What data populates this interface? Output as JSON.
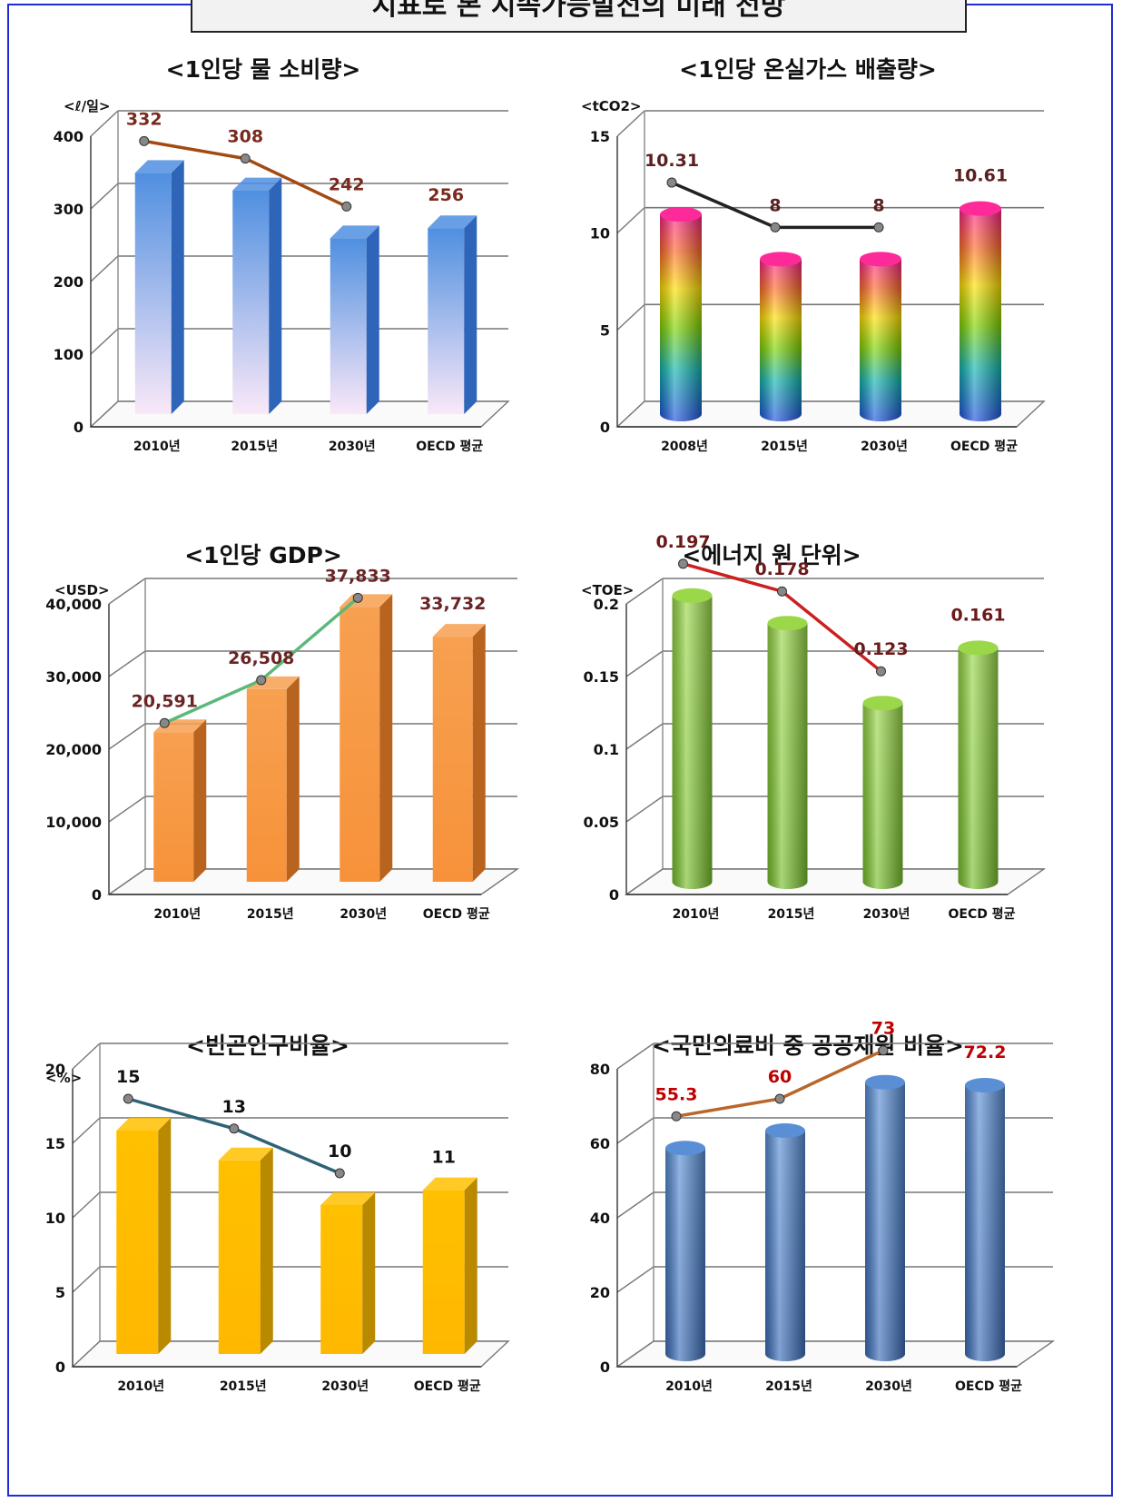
{
  "page": {
    "title": "지표로 본 지속가능발전의 미래 전망"
  },
  "chart_data": [
    {
      "id": "water",
      "type": "bar",
      "title": "<1인당 물 소비량>",
      "unit": "<ℓ/일>",
      "categories": [
        "2010년",
        "2015년",
        "2030년",
        "OECD 평균"
      ],
      "values": [
        332,
        308,
        242,
        256
      ],
      "data_labels": [
        "332",
        "308",
        "242",
        "256"
      ],
      "trend_line_points": 3,
      "ylim": [
        0,
        400
      ],
      "yticks": [
        "0",
        "100",
        "200",
        "300",
        "400"
      ],
      "bar_shape": "box",
      "colors": {
        "bar_top": "#4f8fe0",
        "bar_bottom": "#fae8f8",
        "bar_side": "#2f65b8",
        "line": "#a34a13",
        "label": "#7a2a1e"
      }
    },
    {
      "id": "ghg",
      "type": "bar",
      "title": "<1인당 온실가스 배출량>",
      "unit": "<tCO2>",
      "categories": [
        "2008년",
        "2015년",
        "2030년",
        "OECD 평균"
      ],
      "values": [
        10.31,
        8,
        8,
        10.61
      ],
      "data_labels": [
        "10.31",
        "8",
        "8",
        "10.61"
      ],
      "trend_line_points": 3,
      "ylim": [
        0,
        15
      ],
      "yticks": [
        "0",
        "5",
        "10",
        "15"
      ],
      "bar_shape": "cylinder",
      "colors": {
        "line": "#222222",
        "label": "#5a2020"
      }
    },
    {
      "id": "gdp",
      "type": "bar",
      "title": "<1인당 GDP>",
      "unit": "<USD>",
      "categories": [
        "2010년",
        "2015년",
        "2030년",
        "OECD 평균"
      ],
      "values": [
        20591,
        26508,
        37833,
        33732
      ],
      "data_labels": [
        "20,591",
        "26,508",
        "37,833",
        "33,732"
      ],
      "trend_line_points": 3,
      "ylim": [
        0,
        40000
      ],
      "yticks": [
        "0",
        "10,000",
        "20,000",
        "30,000",
        "40,000"
      ],
      "bar_shape": "box",
      "colors": {
        "bar_top": "#f7a050",
        "bar_bottom": "#f7923a",
        "bar_side": "#b8641f",
        "line": "#5cb87a",
        "label": "#6b2424"
      }
    },
    {
      "id": "energy",
      "type": "bar",
      "title": "<에너지 원 단위>",
      "unit": "<TOE>",
      "categories": [
        "2010년",
        "2015년",
        "2030년",
        "OECD 평균"
      ],
      "values": [
        0.197,
        0.178,
        0.123,
        0.161
      ],
      "data_labels": [
        "0.197",
        "0.178",
        "0.123",
        "0.161"
      ],
      "trend_line_points": 3,
      "ylim": [
        0,
        0.2
      ],
      "yticks": [
        "0",
        "0.05",
        "0.1",
        "0.15",
        "0.2"
      ],
      "bar_shape": "cylinder",
      "colors": {
        "bar_top": "#9ad84a",
        "bar_bottom": "#78c02c",
        "bar_side": "#4e8a1a",
        "line": "#cc1f1f",
        "label": "#6b1a1a"
      }
    },
    {
      "id": "poverty",
      "type": "bar",
      "title": "<빈곤인구비율>",
      "unit": "<%>",
      "categories": [
        "2010년",
        "2015년",
        "2030년",
        "OECD 평균"
      ],
      "values": [
        15,
        13,
        10,
        11
      ],
      "data_labels": [
        "15",
        "13",
        "10",
        "11"
      ],
      "trend_line_points": 3,
      "ylim": [
        0,
        20
      ],
      "yticks": [
        "0",
        "5",
        "10",
        "15",
        "20"
      ],
      "bar_shape": "box",
      "colors": {
        "bar_top": "#ffc000",
        "bar_bottom": "#ffb800",
        "bar_side": "#b98a00",
        "line": "#2f6277",
        "label": "#111111"
      }
    },
    {
      "id": "health",
      "type": "bar",
      "title": "<국민의료비 중 공공재원 비율>",
      "unit": "",
      "categories": [
        "2010년",
        "2015년",
        "2030년",
        "OECD 평균"
      ],
      "values": [
        55.3,
        60,
        73,
        72.2
      ],
      "data_labels": [
        "55.3",
        "60",
        "73",
        "72.2"
      ],
      "trend_line_points": 3,
      "ylim": [
        0,
        80
      ],
      "yticks": [
        "0",
        "20",
        "40",
        "60",
        "80"
      ],
      "bar_shape": "cylinder",
      "colors": {
        "bar_top": "#5a8fd6",
        "bar_bottom": "#3b6db8",
        "bar_side": "#24477e",
        "line": "#b8662a",
        "label": "#c00000"
      }
    }
  ]
}
